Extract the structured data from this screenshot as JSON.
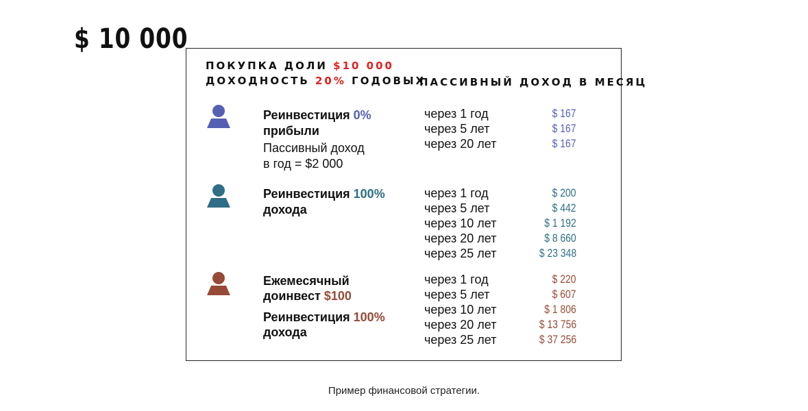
{
  "title": "$ 10 000",
  "card": {
    "header_line1_prefix": "ПОКУПКА ДОЛИ",
    "header_line1_value": "$10 000",
    "header_line2_prefix": "ДОХОДНОСТЬ",
    "header_line2_value": "20%",
    "header_line2_suffix": "ГОДОВЫХ",
    "column_header": "ПАССИВНЫЙ ДОХОД В МЕСЯЦ",
    "strategies": [
      {
        "icon": "person-icon",
        "color": "#5560b3",
        "desc_line1": "Реинвестиция",
        "desc_line1_value": "0%",
        "desc_line2": "прибыли",
        "note_line1": "Пассивный доход",
        "note_line2": "в год = $2 000",
        "rows": [
          {
            "period": "через 1 год",
            "amount": "$ 167"
          },
          {
            "period": "через 5 лет",
            "amount": "$ 167"
          },
          {
            "period": "через 20 лет",
            "amount": "$ 167"
          }
        ]
      },
      {
        "icon": "person-icon",
        "color": "#2f6e86",
        "desc_line1": "Реинвестиция",
        "desc_line1_value": "100%",
        "desc_line2": "дохода",
        "rows": [
          {
            "period": "через 1 год",
            "amount": "$ 200"
          },
          {
            "period": "через 5 лет",
            "amount": "$ 442"
          },
          {
            "period": "через 10 лет",
            "amount": "$ 1 192"
          },
          {
            "period": "через 20 лет",
            "amount": "$ 8 660"
          },
          {
            "period": "через 25 лет",
            "amount": "$ 23 348"
          }
        ]
      },
      {
        "icon": "person-icon",
        "color": "#964b36",
        "desc_line1": "Ежемесячный",
        "desc_line2": "доинвест",
        "desc_line2_value": "$100",
        "desc_line3": "Реинвестиция",
        "desc_line3_value": "100%",
        "desc_line4": "дохода",
        "rows": [
          {
            "period": "через 1 год",
            "amount": "$ 220"
          },
          {
            "period": "через 5 лет",
            "amount": "$ 607"
          },
          {
            "period": "через 10 лет",
            "amount": "$ 1 806"
          },
          {
            "period": "через 20 лет",
            "amount": "$ 13 756"
          },
          {
            "period": "через 25 лет",
            "amount": "$ 37 256"
          }
        ]
      }
    ]
  },
  "caption": "Пример финансовой стратегии."
}
